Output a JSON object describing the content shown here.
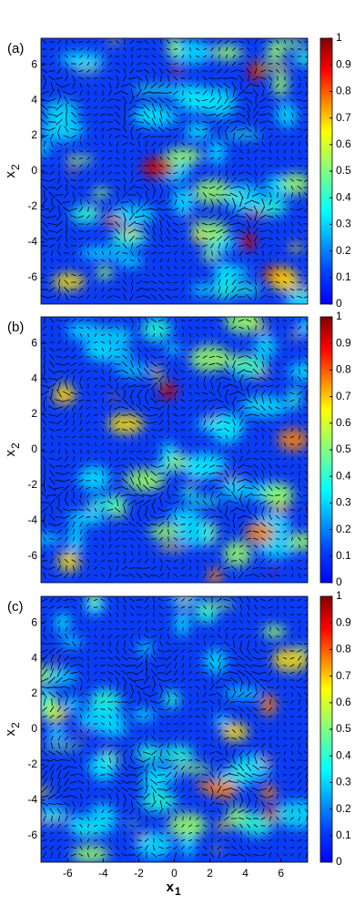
{
  "chart_data": [
    {
      "type": "heatmap",
      "panel_label": "(a)",
      "ylabel": "x",
      "ylabel_sub": "2",
      "xlim": [
        -7.5,
        7.5
      ],
      "ylim": [
        -7.5,
        7.5
      ],
      "yticks": [
        -6,
        -4,
        -2,
        0,
        2,
        4,
        6
      ],
      "clim": [
        0,
        1
      ],
      "cticks": [
        0,
        0.1,
        0.2,
        0.3,
        0.4,
        0.5,
        0.6,
        0.7,
        0.8,
        0.9,
        1
      ]
    },
    {
      "type": "heatmap",
      "panel_label": "(b)",
      "ylabel": "x",
      "ylabel_sub": "2",
      "xlim": [
        -7.5,
        7.5
      ],
      "ylim": [
        -7.5,
        7.5
      ],
      "yticks": [
        -6,
        -4,
        -2,
        0,
        2,
        4,
        6
      ],
      "clim": [
        0,
        1
      ],
      "cticks": [
        0,
        0.1,
        0.2,
        0.3,
        0.4,
        0.5,
        0.6,
        0.7,
        0.8,
        0.9,
        1
      ]
    },
    {
      "type": "heatmap",
      "panel_label": "(c)",
      "ylabel": "x",
      "ylabel_sub": "2",
      "xlabel": "x",
      "xlabel_sub": "1",
      "xlim": [
        -7.5,
        7.5
      ],
      "ylim": [
        -7.5,
        7.5
      ],
      "yticks": [
        -6,
        -4,
        -2,
        0,
        2,
        4,
        6
      ],
      "xticks": [
        -6,
        -4,
        -2,
        0,
        2,
        4,
        6
      ],
      "clim": [
        0,
        1
      ],
      "cticks": [
        0,
        0.1,
        0.2,
        0.3,
        0.4,
        0.5,
        0.6,
        0.7,
        0.8,
        0.9,
        1
      ]
    }
  ]
}
